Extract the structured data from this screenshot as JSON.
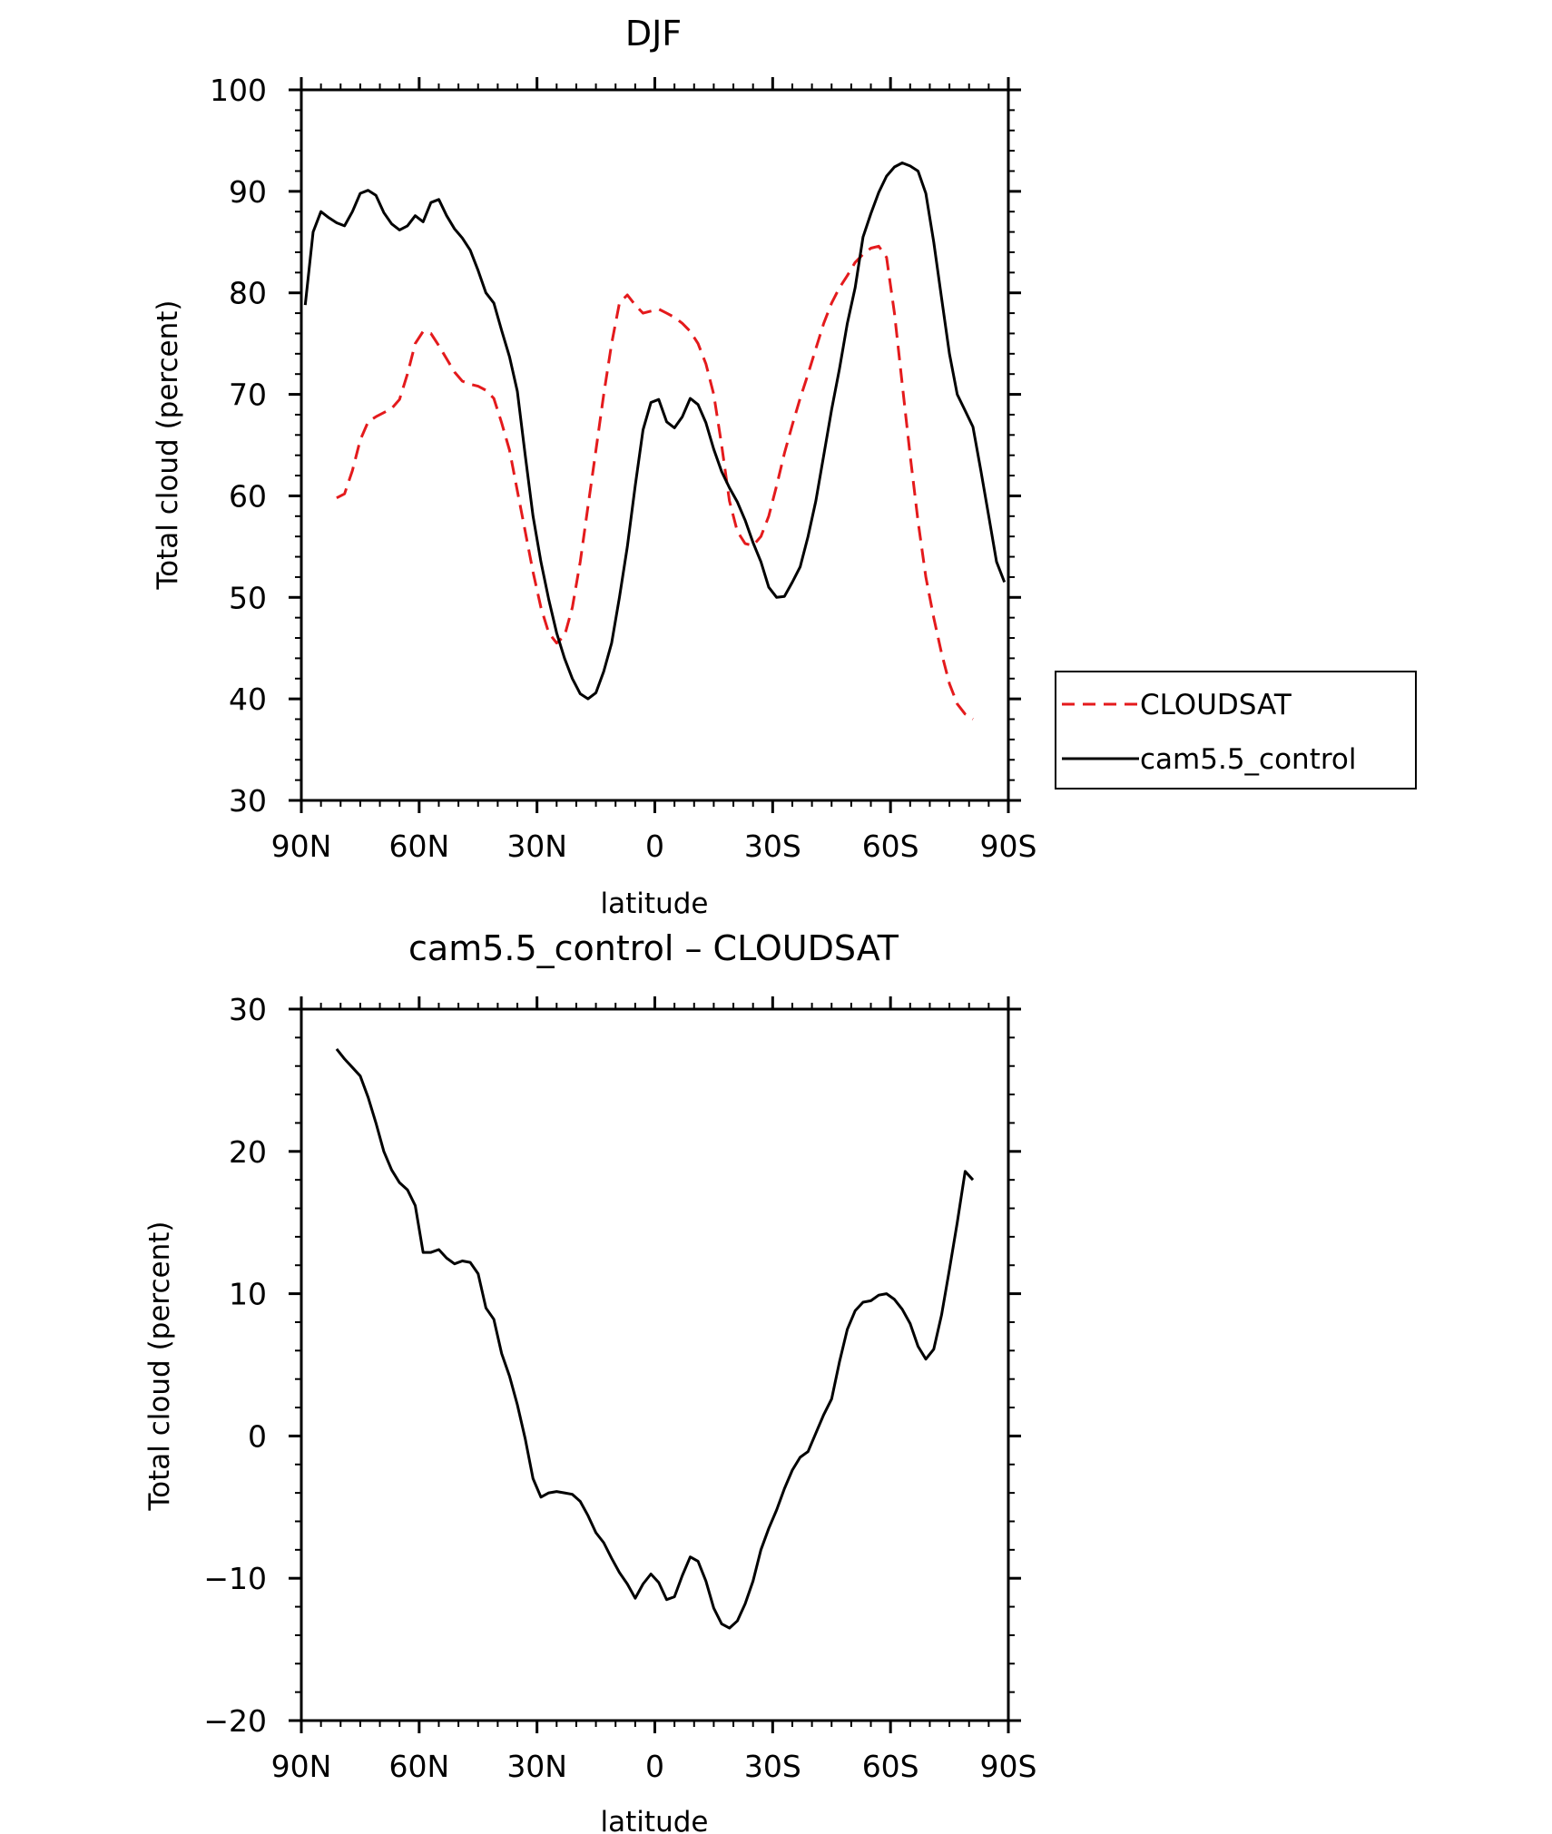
{
  "chart_data": [
    {
      "type": "line",
      "title": "DJF",
      "xlabel": "latitude",
      "ylabel": "Total cloud (percent)",
      "xlim": [
        -90,
        90
      ],
      "ylim": [
        30,
        100
      ],
      "xticks": [
        -90,
        -60,
        -30,
        0,
        30,
        60,
        90
      ],
      "xtick_labels": [
        "90N",
        "60N",
        "30N",
        "0",
        "30S",
        "60S",
        "90S"
      ],
      "yticks": [
        30,
        40,
        50,
        60,
        70,
        80,
        90,
        100
      ],
      "ytick_labels": [
        "30",
        "40",
        "50",
        "60",
        "70",
        "80",
        "90",
        "100"
      ],
      "legend_position": "right",
      "series": [
        {
          "name": "CLOUDSAT",
          "color": "#e41a1c",
          "dash": "dashed",
          "x": [
            -81,
            -79,
            -77,
            -75,
            -73,
            -71,
            -69,
            -67,
            -65,
            -63,
            -61,
            -59,
            -57,
            -55,
            -53,
            -51,
            -49,
            -47,
            -45,
            -43,
            -41,
            -39,
            -37,
            -35,
            -33,
            -31,
            -29,
            -27,
            -25,
            -23,
            -21,
            -19,
            -17,
            -15,
            -13,
            -11,
            -9,
            -7,
            -5,
            -3,
            -1,
            1,
            3,
            5,
            7,
            9,
            11,
            13,
            15,
            17,
            19,
            21,
            23,
            25,
            27,
            29,
            31,
            33,
            35,
            37,
            39,
            41,
            43,
            45,
            47,
            49,
            51,
            53,
            55,
            57,
            59,
            61,
            63,
            65,
            67,
            69,
            71,
            73,
            75,
            77,
            79,
            81
          ],
          "values": [
            59.8,
            60.2,
            62.5,
            65.5,
            67.3,
            67.8,
            68.2,
            68.6,
            69.5,
            72.0,
            75.0,
            76.2,
            76.0,
            74.8,
            73.5,
            72.2,
            71.3,
            71.0,
            70.8,
            70.4,
            69.6,
            67.2,
            64.5,
            60.5,
            56.5,
            52.5,
            49.0,
            46.5,
            45.5,
            46.2,
            49.0,
            53.5,
            59.0,
            64.5,
            70.0,
            75.0,
            79.0,
            79.8,
            78.8,
            78.0,
            78.2,
            78.4,
            78.0,
            77.6,
            77.0,
            76.2,
            75.0,
            73.0,
            70.0,
            65.0,
            59.5,
            56.5,
            55.3,
            55.1,
            56.0,
            58.0,
            61.0,
            64.2,
            67.0,
            69.6,
            72.0,
            74.5,
            77.0,
            79.0,
            80.5,
            81.7,
            83.0,
            83.8,
            84.4,
            84.6,
            83.5,
            78.0,
            71.0,
            64.0,
            57.5,
            52.0,
            48.0,
            44.5,
            41.5,
            39.5,
            38.5,
            38.0
          ],
          "x_visible_end": 81
        },
        {
          "name": "cam5.5_control",
          "color": "#000000",
          "dash": "solid",
          "x": [
            -89,
            -87,
            -85,
            -83,
            -81,
            -79,
            -77,
            -75,
            -73,
            -71,
            -69,
            -67,
            -65,
            -63,
            -61,
            -59,
            -57,
            -55,
            -53,
            -51,
            -49,
            -47,
            -45,
            -43,
            -41,
            -39,
            -37,
            -35,
            -33,
            -31,
            -29,
            -27,
            -25,
            -23,
            -21,
            -19,
            -17,
            -15,
            -13,
            -11,
            -9,
            -7,
            -5,
            -3,
            -1,
            1,
            3,
            5,
            7,
            9,
            11,
            13,
            15,
            17,
            19,
            21,
            23,
            25,
            27,
            29,
            31,
            33,
            35,
            37,
            39,
            41,
            43,
            45,
            47,
            49,
            51,
            53,
            55,
            57,
            59,
            61,
            63,
            65,
            67,
            69,
            71,
            73,
            75,
            77,
            79,
            81,
            83,
            85,
            87,
            89
          ],
          "values": [
            78.8,
            86.0,
            88.0,
            87.4,
            86.9,
            86.6,
            88.0,
            89.8,
            90.1,
            89.6,
            87.9,
            86.8,
            86.2,
            86.6,
            87.6,
            87.0,
            88.9,
            89.2,
            87.6,
            86.3,
            85.4,
            84.2,
            82.2,
            80.0,
            79.0,
            76.3,
            73.7,
            70.3,
            64.0,
            58.0,
            53.5,
            49.8,
            46.5,
            44.0,
            42.0,
            40.5,
            40.0,
            40.6,
            42.7,
            45.5,
            50.0,
            55.0,
            61.0,
            66.5,
            69.2,
            69.5,
            67.3,
            66.7,
            67.8,
            69.6,
            69.0,
            67.2,
            64.6,
            62.4,
            60.8,
            59.4,
            57.6,
            55.4,
            53.5,
            51.0,
            50.0,
            50.1,
            51.5,
            53.0,
            56.0,
            59.5,
            64.0,
            68.5,
            72.5,
            77.0,
            80.5,
            85.5,
            87.8,
            89.9,
            91.5,
            92.4,
            92.8,
            92.5,
            92.0,
            89.8,
            85.0,
            79.5,
            74.0,
            70.0,
            68.4,
            66.8,
            62.5,
            58.0,
            53.5,
            51.5
          ]
        }
      ]
    },
    {
      "type": "line",
      "title": "cam5.5_control – CLOUDSAT",
      "xlabel": "latitude",
      "ylabel": "Total cloud (percent)",
      "xlim": [
        -90,
        90
      ],
      "ylim": [
        -20,
        30
      ],
      "xticks": [
        -90,
        -60,
        -30,
        0,
        30,
        60,
        90
      ],
      "xtick_labels": [
        "90N",
        "60N",
        "30N",
        "0",
        "30S",
        "60S",
        "90S"
      ],
      "yticks": [
        -20,
        -10,
        0,
        10,
        20,
        30
      ],
      "ytick_labels": [
        "−20",
        "−10",
        "0",
        "10",
        "20",
        "30"
      ],
      "series": [
        {
          "color": "#000000",
          "dash": "solid",
          "x": [
            -81,
            -79,
            -77,
            -75,
            -73,
            -71,
            -69,
            -67,
            -65,
            -63,
            -61,
            -59,
            -57,
            -55,
            -53,
            -51,
            -49,
            -47,
            -45,
            -43,
            -41,
            -39,
            -37,
            -35,
            -33,
            -31,
            -29,
            -27,
            -25,
            -23,
            -21,
            -19,
            -17,
            -15,
            -13,
            -11,
            -9,
            -7,
            -5,
            -3,
            -1,
            1,
            3,
            5,
            7,
            9,
            11,
            13,
            15,
            17,
            19,
            21,
            23,
            25,
            27,
            29,
            31,
            33,
            35,
            37,
            39,
            41,
            43,
            45,
            47,
            49,
            51,
            53,
            55,
            57,
            59,
            61,
            63,
            65,
            67,
            69,
            71,
            73,
            75,
            77,
            79,
            81
          ],
          "values": [
            27.2,
            26.5,
            25.9,
            25.3,
            23.8,
            22.0,
            20.0,
            18.7,
            17.8,
            17.3,
            16.2,
            12.9,
            12.9,
            13.1,
            12.5,
            12.1,
            12.3,
            12.2,
            11.4,
            9.0,
            8.2,
            5.8,
            4.2,
            2.2,
            -0.2,
            -3.0,
            -4.3,
            -4.0,
            -3.9,
            -4.0,
            -4.1,
            -4.6,
            -5.6,
            -6.8,
            -7.5,
            -8.6,
            -9.6,
            -10.4,
            -11.4,
            -10.4,
            -9.7,
            -10.3,
            -11.5,
            -11.3,
            -9.8,
            -8.5,
            -8.8,
            -10.2,
            -12.1,
            -13.2,
            -13.5,
            -13.0,
            -11.8,
            -10.2,
            -8.0,
            -6.5,
            -5.2,
            -3.7,
            -2.4,
            -1.5,
            -1.1,
            0.2,
            1.5,
            2.6,
            5.2,
            7.5,
            8.8,
            9.4,
            9.5,
            9.9,
            10.0,
            9.6,
            8.9,
            7.9,
            6.3,
            5.4,
            6.1,
            8.5,
            11.7,
            15.0,
            18.6,
            18.0
          ]
        }
      ]
    }
  ]
}
